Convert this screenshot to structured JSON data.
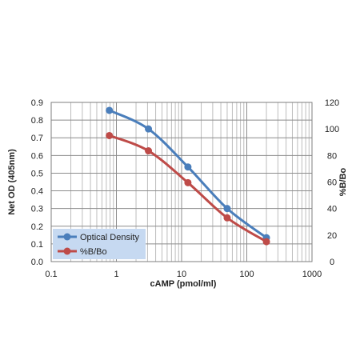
{
  "chart_data": {
    "type": "line",
    "title": "",
    "xlabel": "cAMP (pmol/ml)",
    "ylabel": "Net OD (405nm)",
    "y2label": "%B/Bo",
    "x_scale": "log",
    "xlim": [
      0.1,
      1000
    ],
    "ylim": [
      0,
      0.9
    ],
    "y2lim": [
      0,
      120
    ],
    "x_ticks": [
      0.1,
      1,
      10,
      100,
      1000
    ],
    "x_tick_labels": [
      "0.1",
      "1",
      "10",
      "100",
      "1000"
    ],
    "y_ticks": [
      0,
      0.1,
      0.2,
      0.3,
      0.4,
      0.5,
      0.6,
      0.7,
      0.8,
      0.9
    ],
    "y_tick_labels": [
      "0.0",
      "0.1",
      "0.2",
      "0.3",
      "0.4",
      "0.5",
      "0.6",
      "0.7",
      "0.8",
      "0.9"
    ],
    "y2_ticks": [
      0,
      20,
      40,
      60,
      80,
      100,
      120
    ],
    "y2_tick_labels": [
      "0",
      "20",
      "40",
      "60",
      "80",
      "100",
      "120"
    ],
    "grid": true,
    "legend_position": "bottom-left",
    "series": [
      {
        "name": "Optical Density",
        "axis": "left",
        "color": "#4a7ebb",
        "x": [
          0.78,
          3.1,
          12.5,
          50,
          200
        ],
        "y": [
          0.855,
          0.75,
          0.535,
          0.3,
          0.135
        ]
      },
      {
        "name": "%B/Bo",
        "axis": "right",
        "color": "#be4b48",
        "x": [
          0.78,
          3.1,
          12.5,
          50,
          200
        ],
        "y": [
          95,
          83.5,
          59.5,
          33,
          15
        ]
      }
    ]
  }
}
